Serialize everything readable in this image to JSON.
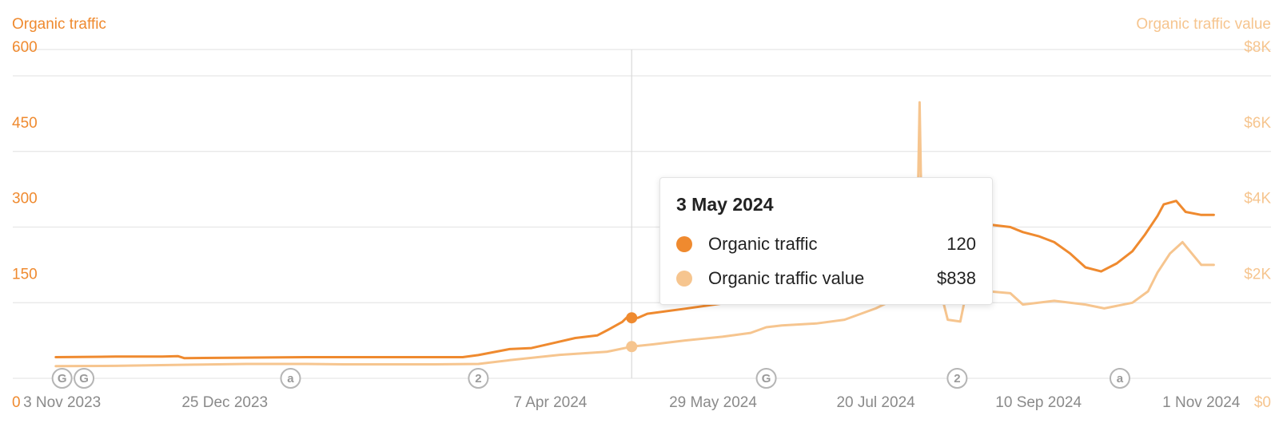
{
  "colors": {
    "traffic": "#ef8a2f",
    "traffic_value": "#f6c58f",
    "grid": "#e6e6e6",
    "crosshair": "#d9d9d9",
    "x_tick": "#8a8a8a",
    "marker": "#b5b5b5"
  },
  "chart_data": {
    "type": "line",
    "left_axis_title": "Organic traffic",
    "right_axis_title": "Organic traffic value",
    "y_left": {
      "min": 0,
      "max": 600,
      "ticks": [
        0,
        150,
        300,
        450,
        600
      ],
      "tick_labels": [
        "0",
        "150",
        "300",
        "450",
        "600"
      ]
    },
    "y_right": {
      "min": 0,
      "max": 8000,
      "ticks": [
        0,
        2000,
        4000,
        6000,
        8000
      ],
      "tick_labels": [
        "$0",
        "$2K",
        "$4K",
        "$6K",
        "$8K"
      ]
    },
    "x_range": [
      "2023-10-30",
      "2024-11-10"
    ],
    "x_ticks": [
      {
        "date": "2023-11-03",
        "label": "3 Nov 2023"
      },
      {
        "date": "2023-12-25",
        "label": "25 Dec 2023"
      },
      {
        "date": "2024-04-07",
        "label": "7 Apr 2024"
      },
      {
        "date": "2024-05-29",
        "label": "29 May 2024"
      },
      {
        "date": "2024-07-20",
        "label": "20 Jul 2024"
      },
      {
        "date": "2024-09-10",
        "label": "10 Sep 2024"
      },
      {
        "date": "2024-11-01",
        "label": "1 Nov 2024"
      }
    ],
    "series": [
      {
        "name": "Organic traffic",
        "axis": "left",
        "points": [
          [
            "2023-11-01",
            42
          ],
          [
            "2023-11-20",
            43
          ],
          [
            "2023-12-05",
            43
          ],
          [
            "2023-12-10",
            44
          ],
          [
            "2023-12-12",
            40
          ],
          [
            "2023-12-31",
            41
          ],
          [
            "2024-01-20",
            42
          ],
          [
            "2024-02-20",
            42
          ],
          [
            "2024-03-10",
            42
          ],
          [
            "2024-03-15",
            46
          ],
          [
            "2024-03-25",
            58
          ],
          [
            "2024-04-01",
            60
          ],
          [
            "2024-04-08",
            70
          ],
          [
            "2024-04-15",
            80
          ],
          [
            "2024-04-22",
            85
          ],
          [
            "2024-04-26",
            98
          ],
          [
            "2024-04-30",
            112
          ],
          [
            "2024-05-02",
            124
          ],
          [
            "2024-05-03",
            120
          ],
          [
            "2024-05-05",
            120
          ],
          [
            "2024-05-08",
            128
          ],
          [
            "2024-05-20",
            138
          ],
          [
            "2024-06-05",
            152
          ],
          [
            "2024-06-20",
            172
          ],
          [
            "2024-07-05",
            205
          ],
          [
            "2024-07-15",
            232
          ],
          [
            "2024-07-25",
            262
          ],
          [
            "2024-08-05",
            292
          ],
          [
            "2024-08-15",
            305
          ],
          [
            "2024-08-25",
            305
          ],
          [
            "2024-09-01",
            300
          ],
          [
            "2024-09-05",
            290
          ],
          [
            "2024-09-10",
            282
          ],
          [
            "2024-09-15",
            270
          ],
          [
            "2024-09-20",
            248
          ],
          [
            "2024-09-25",
            220
          ],
          [
            "2024-09-30",
            212
          ],
          [
            "2024-10-05",
            228
          ],
          [
            "2024-10-10",
            252
          ],
          [
            "2024-10-14",
            285
          ],
          [
            "2024-10-18",
            322
          ],
          [
            "2024-10-20",
            345
          ],
          [
            "2024-10-24",
            352
          ],
          [
            "2024-10-27",
            330
          ],
          [
            "2024-11-01",
            324
          ],
          [
            "2024-11-05",
            324
          ]
        ]
      },
      {
        "name": "Organic traffic value",
        "axis": "right",
        "points": [
          [
            "2023-11-01",
            320
          ],
          [
            "2023-11-20",
            330
          ],
          [
            "2023-12-15",
            360
          ],
          [
            "2024-01-01",
            380
          ],
          [
            "2024-01-20",
            380
          ],
          [
            "2024-02-01",
            370
          ],
          [
            "2024-03-01",
            370
          ],
          [
            "2024-03-15",
            380
          ],
          [
            "2024-03-25",
            480
          ],
          [
            "2024-04-10",
            620
          ],
          [
            "2024-04-25",
            700
          ],
          [
            "2024-05-03",
            838
          ],
          [
            "2024-05-10",
            900
          ],
          [
            "2024-05-20",
            1000
          ],
          [
            "2024-06-01",
            1100
          ],
          [
            "2024-06-10",
            1200
          ],
          [
            "2024-06-15",
            1350
          ],
          [
            "2024-06-20",
            1400
          ],
          [
            "2024-07-01",
            1450
          ],
          [
            "2024-07-10",
            1550
          ],
          [
            "2024-07-15",
            1700
          ],
          [
            "2024-07-20",
            1850
          ],
          [
            "2024-07-25",
            2050
          ],
          [
            "2024-07-31",
            2200
          ],
          [
            "2024-08-02",
            2700
          ],
          [
            "2024-08-03",
            7300
          ],
          [
            "2024-08-04",
            2600
          ],
          [
            "2024-08-10",
            2200
          ],
          [
            "2024-08-12",
            1550
          ],
          [
            "2024-08-16",
            1500
          ],
          [
            "2024-08-18",
            2300
          ],
          [
            "2024-08-25",
            2300
          ],
          [
            "2024-09-01",
            2250
          ],
          [
            "2024-09-05",
            1950
          ],
          [
            "2024-09-15",
            2050
          ],
          [
            "2024-09-25",
            1950
          ],
          [
            "2024-10-01",
            1850
          ],
          [
            "2024-10-10",
            2000
          ],
          [
            "2024-10-15",
            2300
          ],
          [
            "2024-10-18",
            2800
          ],
          [
            "2024-10-22",
            3300
          ],
          [
            "2024-10-26",
            3600
          ],
          [
            "2024-11-01",
            3000
          ],
          [
            "2024-11-05",
            3000
          ]
        ]
      }
    ],
    "markers": [
      {
        "date": "2023-11-03",
        "label": "G"
      },
      {
        "date": "2023-11-10",
        "label": "G"
      },
      {
        "date": "2024-01-15",
        "label": "a"
      },
      {
        "date": "2024-03-15",
        "label": "2"
      },
      {
        "date": "2024-06-15",
        "label": "G"
      },
      {
        "date": "2024-08-15",
        "label": "2"
      },
      {
        "date": "2024-10-06",
        "label": "a"
      }
    ],
    "highlight": {
      "date": "2024-05-03",
      "traffic": 120,
      "traffic_value": 838
    }
  },
  "tooltip": {
    "date": "3 May 2024",
    "rows": [
      {
        "label": "Organic traffic",
        "value": "120"
      },
      {
        "label": "Organic traffic value",
        "value": "$838"
      }
    ]
  }
}
